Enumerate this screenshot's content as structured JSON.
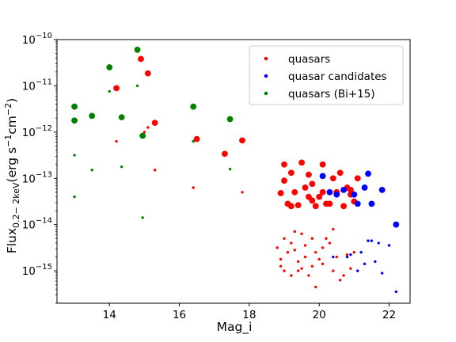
{
  "chart_data": {
    "type": "scatter",
    "xlabel": "Mag_i",
    "ylabel": "Flux",
    "ylabel_sub": "0.2− 2keV",
    "ylabel_units": "(erg s",
    "ylabel_units_sup1": "−1",
    "ylabel_units_mid": "cm",
    "ylabel_units_sup2": "−2",
    "ylabel_units_end": ")",
    "x_range": [
      12.5,
      22.6
    ],
    "y_range_log10": [
      -15.7,
      -10.0
    ],
    "y_scale": "log",
    "x_ticks": [
      14,
      16,
      18,
      20,
      22
    ],
    "x_tick_labels": [
      "14",
      "16",
      "18",
      "20",
      "22"
    ],
    "y_ticks_log10": [
      -15,
      -14,
      -13,
      -12,
      -11,
      -10
    ],
    "y_tick_labels": [
      {
        "base": "10",
        "exp": "−15"
      },
      {
        "base": "10",
        "exp": "−14"
      },
      {
        "base": "10",
        "exp": "−13"
      },
      {
        "base": "10",
        "exp": "−12"
      },
      {
        "base": "10",
        "exp": "−11"
      },
      {
        "base": "10",
        "exp": "−10"
      }
    ],
    "grid": false,
    "legend_position": "top-right",
    "series": [
      {
        "name": "quasars",
        "color": "#ff0000",
        "large": [
          [
            14.2,
            -11.05
          ],
          [
            14.9,
            -10.42
          ],
          [
            15.1,
            -10.73
          ],
          [
            15.3,
            -11.8
          ],
          [
            16.5,
            -12.15
          ],
          [
            17.3,
            -12.47
          ],
          [
            17.8,
            -12.18
          ],
          [
            18.9,
            -13.32
          ],
          [
            19.0,
            -12.7
          ],
          [
            19.0,
            -13.05
          ],
          [
            19.2,
            -12.88
          ],
          [
            19.1,
            -13.55
          ],
          [
            19.2,
            -13.6
          ],
          [
            19.4,
            -13.58
          ],
          [
            19.5,
            -12.66
          ],
          [
            19.6,
            -13.2
          ],
          [
            19.7,
            -12.92
          ],
          [
            19.7,
            -13.4
          ],
          [
            19.8,
            -13.48
          ],
          [
            19.9,
            -13.6
          ],
          [
            20.0,
            -13.4
          ],
          [
            20.1,
            -13.3
          ],
          [
            20.1,
            -12.7
          ],
          [
            20.3,
            -13.55
          ],
          [
            20.4,
            -13.0
          ],
          [
            20.6,
            -12.88
          ],
          [
            20.7,
            -13.6
          ],
          [
            20.8,
            -13.2
          ],
          [
            20.9,
            -13.25
          ],
          [
            21.0,
            -13.5
          ],
          [
            21.1,
            -13.0
          ],
          [
            19.3,
            -13.3
          ],
          [
            19.8,
            -13.12
          ],
          [
            20.2,
            -13.55
          ],
          [
            20.5,
            -13.3
          ],
          [
            20.9,
            -13.35
          ]
        ],
        "small": [
          [
            14.2,
            -12.2
          ],
          [
            15.0,
            -12.0
          ],
          [
            15.1,
            -11.9
          ],
          [
            15.3,
            -12.82
          ],
          [
            16.4,
            -12.2
          ],
          [
            16.4,
            -13.2
          ],
          [
            17.8,
            -13.3
          ],
          [
            18.8,
            -14.5
          ],
          [
            18.9,
            -14.75
          ],
          [
            19.0,
            -14.3
          ],
          [
            19.0,
            -15.0
          ],
          [
            19.1,
            -14.6
          ],
          [
            19.2,
            -14.4
          ],
          [
            19.3,
            -14.55
          ],
          [
            19.4,
            -14.8
          ],
          [
            19.4,
            -15.0
          ],
          [
            19.5,
            -14.2
          ],
          [
            19.6,
            -14.45
          ],
          [
            19.6,
            -14.7
          ],
          [
            19.7,
            -15.1
          ],
          [
            19.8,
            -14.3
          ],
          [
            19.8,
            -14.9
          ],
          [
            19.9,
            -14.6
          ],
          [
            19.9,
            -15.35
          ],
          [
            20.0,
            -14.75
          ],
          [
            20.1,
            -14.5
          ],
          [
            20.1,
            -14.85
          ],
          [
            20.3,
            -14.4
          ],
          [
            20.4,
            -14.1
          ],
          [
            20.4,
            -15.0
          ],
          [
            20.5,
            -14.7
          ],
          [
            20.6,
            -15.2
          ],
          [
            20.7,
            -15.1
          ],
          [
            20.8,
            -14.65
          ],
          [
            20.9,
            -14.95
          ],
          [
            21.0,
            -14.6
          ],
          [
            19.5,
            -14.95
          ],
          [
            19.2,
            -15.1
          ],
          [
            18.9,
            -14.9
          ],
          [
            20.2,
            -14.3
          ],
          [
            19.3,
            -14.15
          ]
        ]
      },
      {
        "name": "quasar candidates",
        "color": "#0000ff",
        "large": [
          [
            20.1,
            -12.95
          ],
          [
            20.7,
            -13.25
          ],
          [
            21.0,
            -13.35
          ],
          [
            21.1,
            -13.55
          ],
          [
            21.3,
            -13.2
          ],
          [
            21.4,
            -12.9
          ],
          [
            21.5,
            -13.55
          ],
          [
            21.8,
            -13.25
          ],
          [
            22.2,
            -14.0
          ],
          [
            20.5,
            -13.35
          ],
          [
            20.3,
            -13.3
          ]
        ],
        "small": [
          [
            20.8,
            -14.7
          ],
          [
            20.9,
            -14.65
          ],
          [
            21.2,
            -14.6
          ],
          [
            21.3,
            -14.85
          ],
          [
            21.4,
            -14.35
          ],
          [
            21.5,
            -14.35
          ],
          [
            21.6,
            -14.8
          ],
          [
            21.7,
            -14.4
          ],
          [
            21.8,
            -15.05
          ],
          [
            22.0,
            -14.45
          ],
          [
            22.2,
            -15.45
          ],
          [
            20.4,
            -14.7
          ],
          [
            21.1,
            -15.0
          ]
        ]
      },
      {
        "name": "quasars (Bi+15)",
        "color": "#008000",
        "large": [
          [
            13.0,
            -11.45
          ],
          [
            13.0,
            -11.75
          ],
          [
            13.5,
            -11.65
          ],
          [
            14.0,
            -10.6
          ],
          [
            14.35,
            -11.68
          ],
          [
            14.8,
            -10.22
          ],
          [
            14.95,
            -12.08
          ],
          [
            16.4,
            -11.45
          ],
          [
            17.45,
            -11.72
          ]
        ],
        "small": [
          [
            13.0,
            -12.5
          ],
          [
            13.0,
            -13.4
          ],
          [
            13.5,
            -12.82
          ],
          [
            14.0,
            -11.12
          ],
          [
            14.35,
            -12.75
          ],
          [
            14.8,
            -11.0
          ],
          [
            14.95,
            -13.85
          ],
          [
            16.4,
            -12.2
          ],
          [
            17.45,
            -12.8
          ]
        ]
      }
    ]
  }
}
